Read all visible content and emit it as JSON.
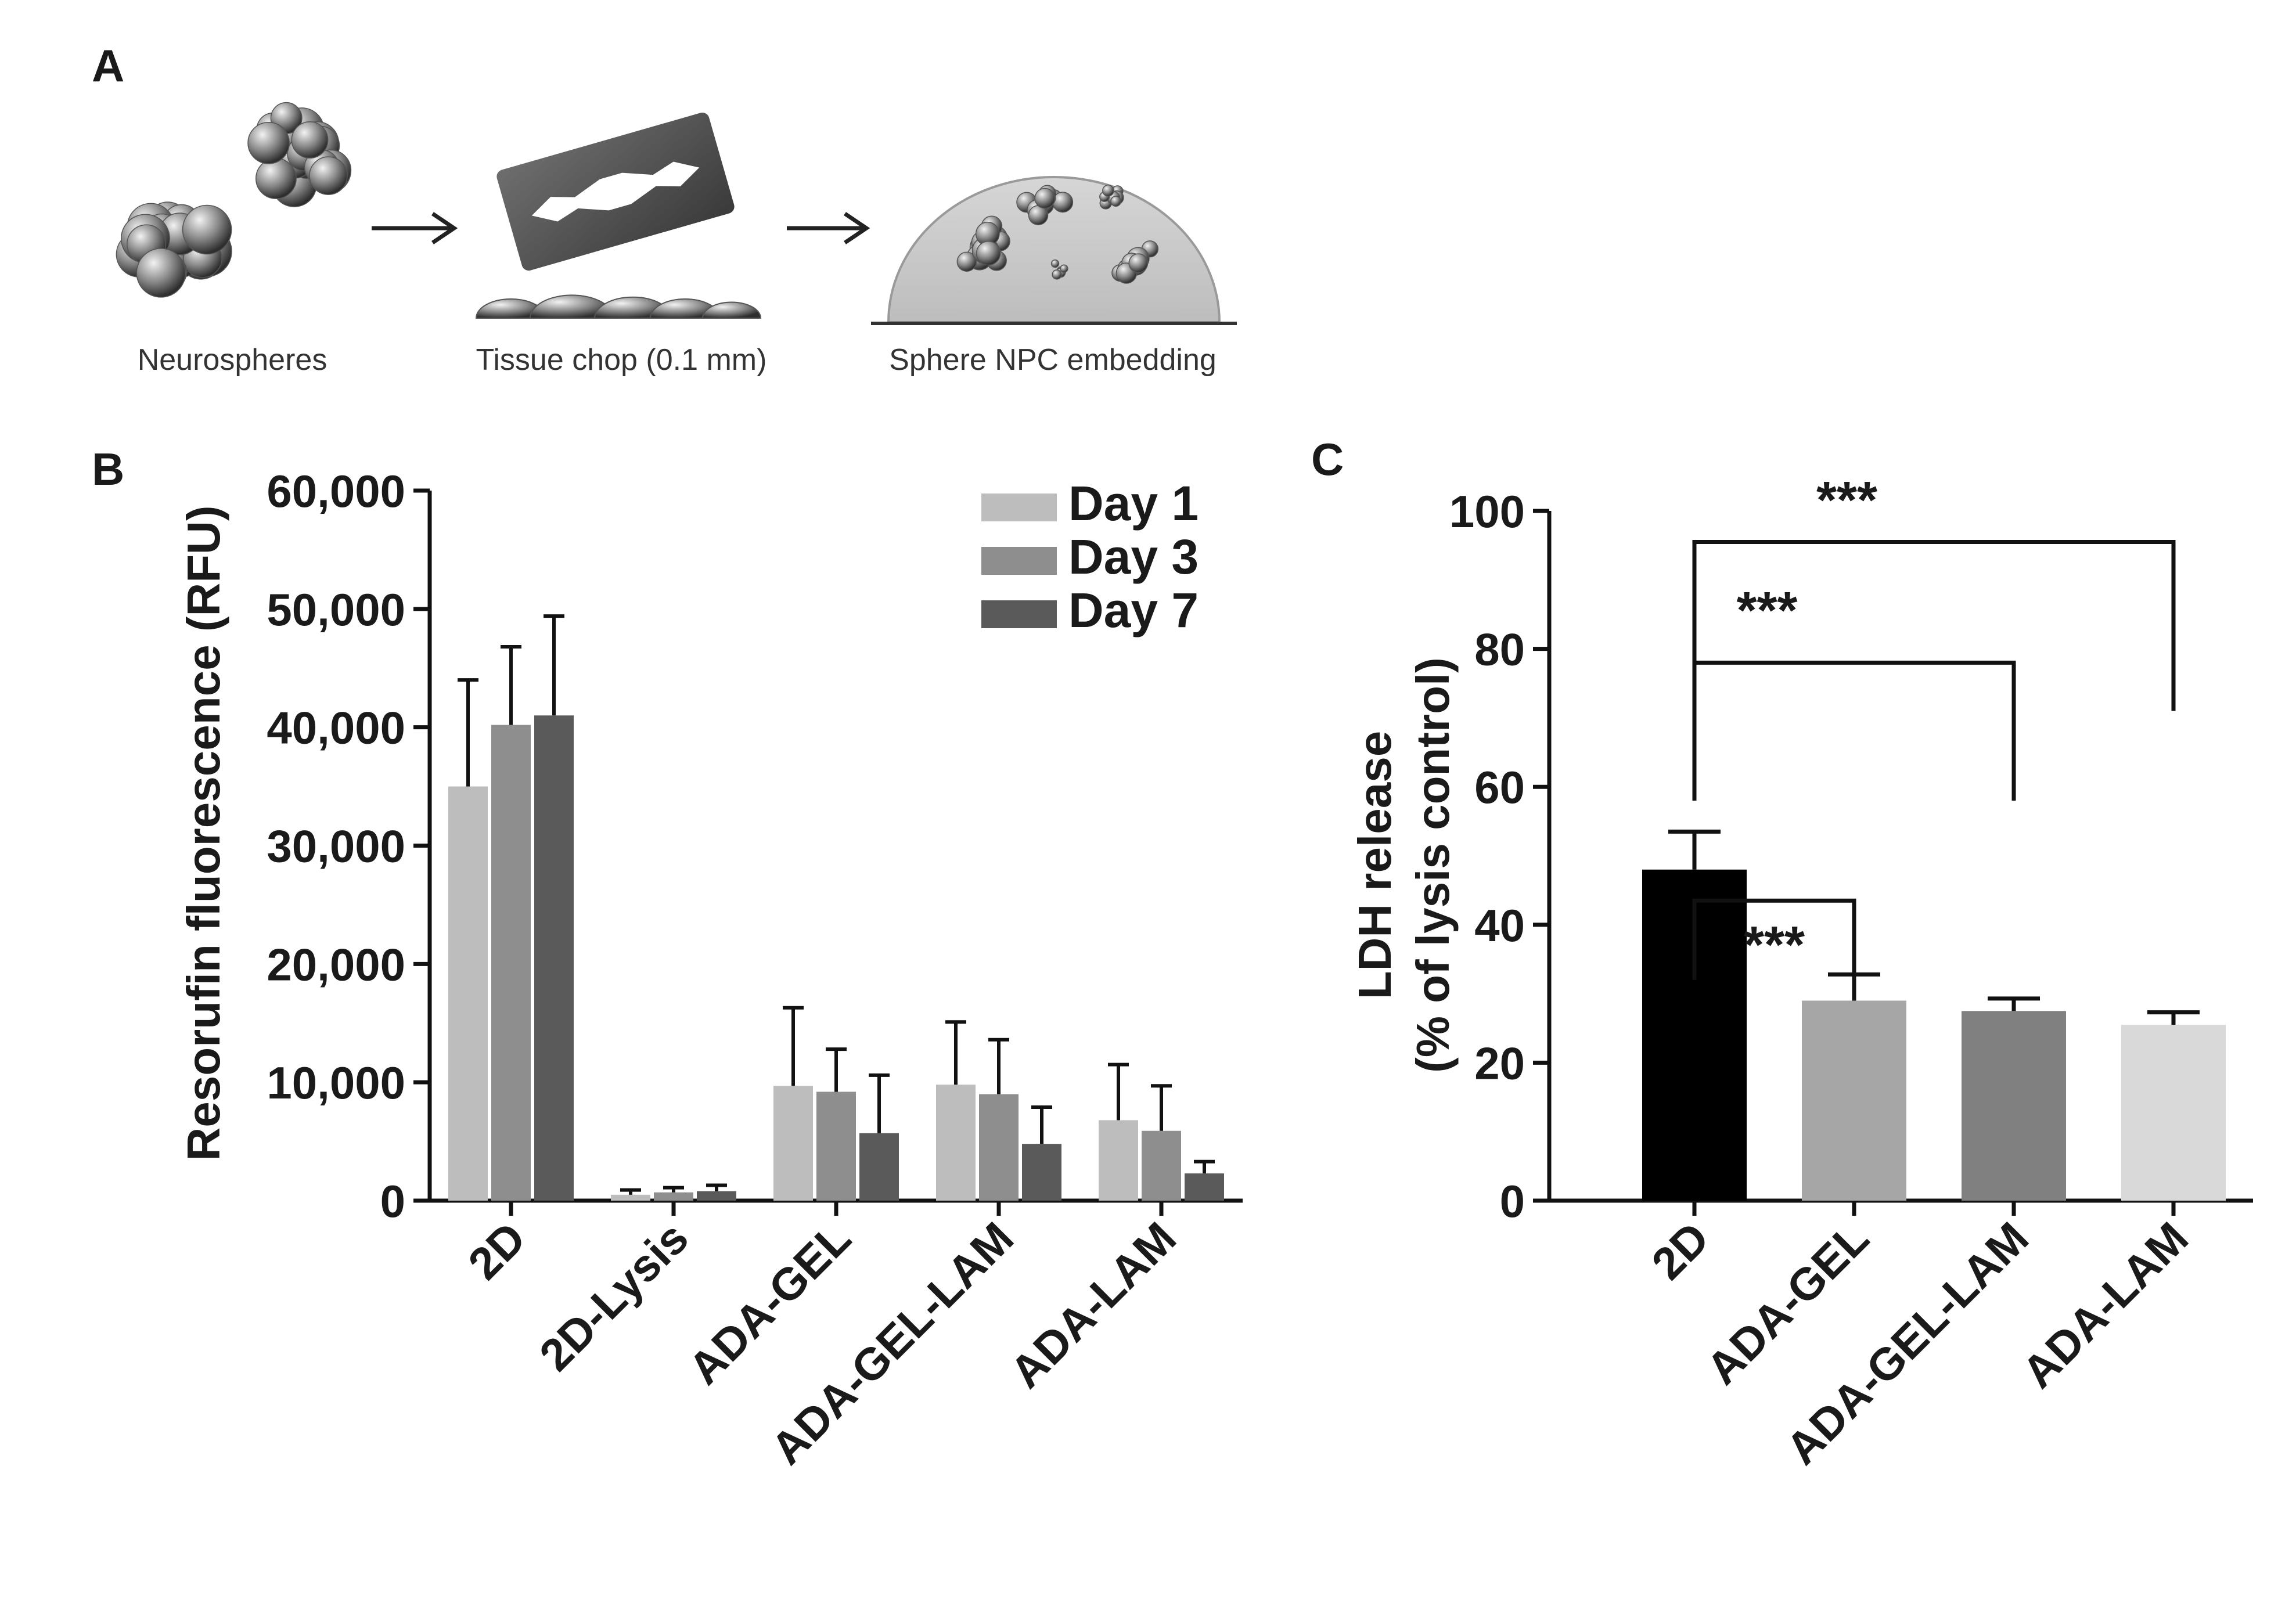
{
  "panel_a": {
    "label": "A",
    "steps": [
      "Neurospheres",
      "Tissue chop (0.1 mm)",
      "Sphere NPC embedding"
    ]
  },
  "chart_data": [
    {
      "panel": "B",
      "type": "bar",
      "title": "",
      "xlabel": "",
      "ylabel": "Resorufin fluorescence (RFU)",
      "ylim": [
        0,
        60000
      ],
      "yticks": [
        "0",
        "10,000",
        "20,000",
        "30,000",
        "40,000",
        "50,000",
        "60,000"
      ],
      "ytick_values": [
        0,
        10000,
        20000,
        30000,
        40000,
        50000,
        60000
      ],
      "categories": [
        "2D",
        "2D-Lysis",
        "ADA-GEL",
        "ADA-GEL-LAM",
        "ADA-LAM"
      ],
      "legend_position": "top-right",
      "series": [
        {
          "name": "Day 1",
          "color": "#bdbdbd",
          "values": [
            35000,
            500,
            9700,
            9800,
            6800
          ],
          "errors": [
            9000,
            400,
            6600,
            5300,
            4700
          ]
        },
        {
          "name": "Day 3",
          "color": "#8e8e8e",
          "values": [
            40200,
            700,
            9200,
            9000,
            5900
          ],
          "errors": [
            6600,
            400,
            3600,
            4600,
            3800
          ]
        },
        {
          "name": "Day 7",
          "color": "#5a5a5a",
          "values": [
            41000,
            800,
            5700,
            4800,
            2300
          ],
          "errors": [
            8400,
            500,
            4900,
            3100,
            1000
          ]
        }
      ]
    },
    {
      "panel": "C",
      "type": "bar",
      "title": "",
      "xlabel": "",
      "ylabel_lines": [
        "LDH release",
        "(% of lysis control)"
      ],
      "ylim": [
        0,
        100
      ],
      "yticks": [
        "0",
        "20",
        "40",
        "60",
        "80",
        "100"
      ],
      "ytick_values": [
        0,
        20,
        40,
        60,
        80,
        100
      ],
      "categories": [
        "2D",
        "ADA-GEL",
        "ADA-GEL-LAM",
        "ADA-LAM"
      ],
      "values": [
        48,
        29,
        27.5,
        25.5
      ],
      "errors": [
        5.5,
        3.8,
        1.8,
        1.8
      ],
      "colors": [
        "#000000",
        "#a6a6a6",
        "#808080",
        "#d9d9d9"
      ],
      "significance": [
        {
          "from": "2D",
          "to": "ADA-GEL",
          "label": "***"
        },
        {
          "from": "2D",
          "to": "ADA-GEL-LAM",
          "label": "***"
        },
        {
          "from": "2D",
          "to": "ADA-LAM",
          "label": "***"
        }
      ]
    }
  ]
}
